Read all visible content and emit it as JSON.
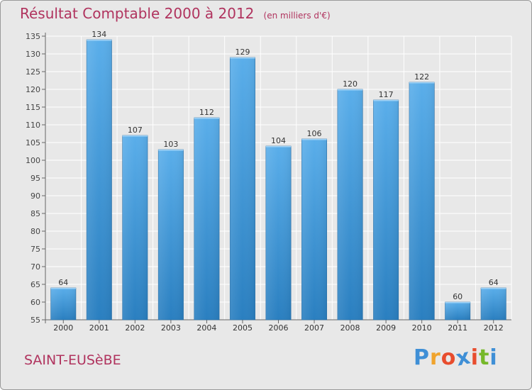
{
  "header": {
    "title": "Résultat Comptable 2000 à 2012",
    "subtitle": "(en milliers d'€)"
  },
  "footer": {
    "commune": "SAINT-EUSèBE",
    "logo_text": "Proxiti",
    "logo_letters": [
      "P",
      "r",
      "o",
      "x",
      "i",
      "t",
      "i"
    ]
  },
  "colors": {
    "title": "#b0335e",
    "bar_top": "#5aaeea",
    "bar_bottom": "#2a7fc0",
    "background": "#e8e8e8",
    "logo": [
      "#3f8fd6",
      "#f0a42d",
      "#e84d2e",
      "#3f8fd6",
      "#e84d2e",
      "#76b82a",
      "#3f8fd6"
    ]
  },
  "chart_data": {
    "type": "bar",
    "categories": [
      "2000",
      "2001",
      "2002",
      "2003",
      "2004",
      "2005",
      "2006",
      "2007",
      "2008",
      "2009",
      "2010",
      "2011",
      "2012"
    ],
    "values": [
      64,
      134,
      107,
      103,
      112,
      129,
      104,
      106,
      120,
      117,
      122,
      60,
      64
    ],
    "ylim": [
      55,
      135
    ],
    "yticks": [
      55,
      60,
      65,
      70,
      75,
      80,
      85,
      90,
      95,
      100,
      105,
      110,
      115,
      120,
      125,
      130,
      135
    ],
    "grid": true
  }
}
